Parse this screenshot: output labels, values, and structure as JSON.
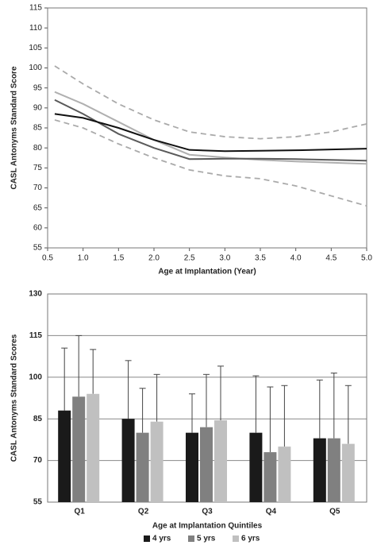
{
  "chart_data": [
    {
      "type": "line",
      "x_label": "Age at Implantation (Year)",
      "y_label": "CASL Antonyms Standard Score",
      "x": [
        0.6,
        1.0,
        1.5,
        2.0,
        2.5,
        3.0,
        3.5,
        4.0,
        4.5,
        5.0
      ],
      "xlim": [
        0.5,
        5.0
      ],
      "xticks": [
        0.5,
        {
          "value": 1,
          "label": "1.0"
        },
        1.5,
        {
          "value": 2,
          "label": "2.0"
        },
        2.5,
        {
          "value": 3,
          "label": "3.0"
        },
        3.5,
        {
          "value": 4,
          "label": "4.0"
        },
        4.5,
        {
          "value": 5,
          "label": "5.0"
        }
      ],
      "ylim": [
        55,
        115
      ],
      "yticks": [
        55,
        60,
        65,
        70,
        75,
        80,
        85,
        90,
        95,
        100,
        105,
        110,
        115
      ],
      "series": [
        {
          "color": "#aaaaaa",
          "dashed": true,
          "values": [
            100.5,
            96,
            91,
            87,
            84,
            82.8,
            82.3,
            82.8,
            84,
            86
          ]
        },
        {
          "color": "#aaaaaa",
          "dashed": true,
          "values": [
            87,
            85,
            81,
            77.5,
            74.5,
            73,
            72.3,
            70.5,
            68,
            65.5
          ]
        },
        {
          "color": "#b0b0b0",
          "dashed": false,
          "values": [
            94,
            91,
            86.5,
            82,
            78.3,
            77.6,
            77,
            76.6,
            76.3,
            76
          ]
        },
        {
          "color": "#5a5a5a",
          "dashed": false,
          "values": [
            92,
            88.5,
            83.5,
            80,
            77.2,
            77.3,
            77.3,
            77.2,
            77,
            76.8
          ]
        },
        {
          "color": "#111111",
          "dashed": false,
          "values": [
            88.5,
            87.5,
            85,
            82,
            79.5,
            79.2,
            79.3,
            79.4,
            79.6,
            79.8
          ]
        }
      ]
    },
    {
      "type": "bar",
      "x_label": "Age at Implantation Quintiles",
      "y_label": "CASL Antonyms Standard Scores",
      "categories": [
        "Q1",
        "Q2",
        "Q3",
        "Q4",
        "Q5"
      ],
      "ylim": [
        55,
        130
      ],
      "yticks": [
        55,
        70,
        85,
        100,
        115,
        130
      ],
      "grid": true,
      "legend": "bottom",
      "series": [
        {
          "name": "4 yrs",
          "color": "#1a1a1a",
          "values": [
            88,
            85,
            80,
            80,
            78
          ],
          "errors": [
            22.5,
            21,
            14,
            20.5,
            21
          ]
        },
        {
          "name": "5 yrs",
          "color": "#808080",
          "values": [
            93,
            80,
            82,
            73,
            78
          ],
          "errors": [
            22,
            16,
            19,
            23.5,
            23.5
          ]
        },
        {
          "name": "6 yrs",
          "color": "#c0c0c0",
          "values": [
            94,
            84,
            84.5,
            75,
            76
          ],
          "errors": [
            16,
            17,
            19.5,
            22,
            21
          ]
        }
      ]
    }
  ]
}
